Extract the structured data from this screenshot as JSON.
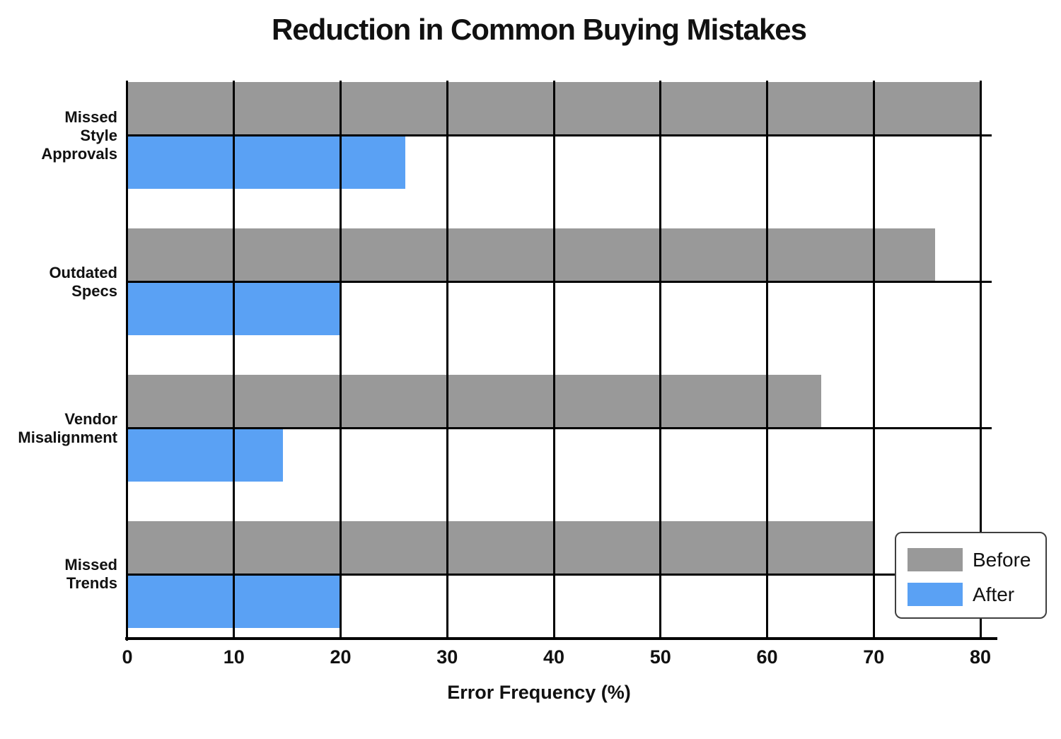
{
  "title": "Reduction in Common Buying Mistakes",
  "xaxis_label": "Error Frequency (%)",
  "colors": {
    "before": "#999999",
    "after": "#5aa1f4",
    "grid": "#000000",
    "background": "#ffffff",
    "legend_border": "#3f3f3f"
  },
  "legend": {
    "position": "lower right",
    "entries": [
      {
        "label": "Before",
        "color": "#999999"
      },
      {
        "label": "After",
        "color": "#5aa1f4"
      }
    ]
  },
  "chart_data": {
    "type": "bar",
    "orientation": "horizontal",
    "title": "Reduction in Common Buying Mistakes",
    "xlabel": "Error Frequency (%)",
    "ylabel": "",
    "xlim": [
      0,
      80
    ],
    "x_ticks": [
      "0",
      "10",
      "20",
      "30",
      "40",
      "50",
      "60",
      "70",
      "80"
    ],
    "grid": true,
    "legend_position": "lower right",
    "categories": [
      "Missed Style Approvals",
      "Outdated Specs",
      "Vendor Misalignment",
      "Missed Trends"
    ],
    "category_label_lines": [
      [
        "Missed",
        "Style",
        "Approvals"
      ],
      [
        "Outdated",
        "Specs"
      ],
      [
        "Vendor",
        "Misalignment"
      ],
      [
        "Missed",
        "Trends"
      ]
    ],
    "series": [
      {
        "name": "Before",
        "color": "#999999",
        "values": [
          80,
          75.7,
          65,
          70
        ]
      },
      {
        "name": "After",
        "color": "#5aa1f4",
        "values": [
          26,
          20,
          14.5,
          20
        ]
      }
    ]
  }
}
